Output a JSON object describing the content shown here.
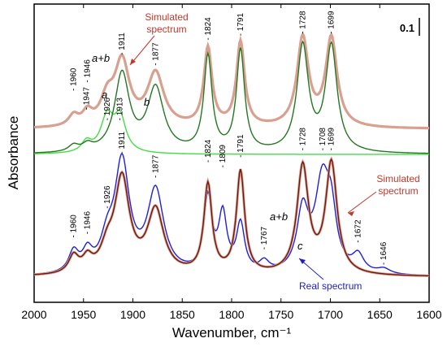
{
  "chart_data": {
    "type": "line",
    "title": "",
    "xlabel": "Wavenumber, cm⁻¹",
    "ylabel": "Absorbance",
    "xlim": [
      2000,
      1600
    ],
    "x_reversed": true,
    "xticks": [
      "2000",
      "1950",
      "1900",
      "1850",
      "1800",
      "1750",
      "1700",
      "1650",
      "1600"
    ],
    "y_ticks_shown": false,
    "scale_bar_label": "0.1",
    "upper_panel": {
      "series": [
        {
          "name": "a+b",
          "color": "#6b1a10",
          "baseline": 0.12,
          "peaks": [
            [
              1960,
              0.05,
              6
            ],
            [
              1946,
              0.06,
              6
            ],
            [
              1926,
              0.12,
              8
            ],
            [
              1911,
              0.3,
              9
            ],
            [
              1877,
              0.25,
              10
            ],
            [
              1824,
              0.37,
              5
            ],
            [
              1791,
              0.4,
              5
            ],
            [
              1728,
              0.42,
              7
            ],
            [
              1699,
              0.42,
              7
            ]
          ]
        },
        {
          "name": "Simulated spectrum",
          "color": "#d9a090",
          "baseline": 0.12,
          "peaks": [
            [
              1960,
              0.05,
              6
            ],
            [
              1946,
              0.06,
              6
            ],
            [
              1926,
              0.12,
              8
            ],
            [
              1911,
              0.3,
              9
            ],
            [
              1877,
              0.25,
              10
            ],
            [
              1824,
              0.37,
              5
            ],
            [
              1791,
              0.4,
              5
            ],
            [
              1728,
              0.42,
              7
            ],
            [
              1699,
              0.42,
              7
            ]
          ]
        },
        {
          "name": "a",
          "color": "#44dd44",
          "baseline": 0.0,
          "peaks": [
            [
              1947,
              0.05,
              6
            ],
            [
              1926,
              0.17,
              8
            ],
            [
              1913,
              0.16,
              7
            ]
          ]
        },
        {
          "name": "b",
          "color": "#227722",
          "baseline": 0.0,
          "peaks": [
            [
              1960,
              0.03,
              6
            ],
            [
              1946,
              0.03,
              6
            ],
            [
              1911,
              0.37,
              9
            ],
            [
              1877,
              0.3,
              10
            ],
            [
              1824,
              0.45,
              5
            ],
            [
              1791,
              0.48,
              5
            ],
            [
              1728,
              0.5,
              7
            ],
            [
              1699,
              0.5,
              7
            ]
          ]
        }
      ]
    },
    "lower_panel": {
      "series": [
        {
          "name": "Real spectrum",
          "color": "#1f1fdd",
          "baseline": 0.02,
          "peaks": [
            [
              1960,
              0.12,
              6
            ],
            [
              1946,
              0.11,
              6
            ],
            [
              1926,
              0.16,
              8
            ],
            [
              1911,
              0.64,
              9
            ],
            [
              1877,
              0.48,
              10
            ],
            [
              1824,
              0.43,
              5
            ],
            [
              1809,
              0.33,
              5
            ],
            [
              1791,
              0.28,
              5
            ],
            [
              1767,
              0.06,
              6
            ],
            [
              1728,
              0.35,
              7
            ],
            [
              1708,
              0.53,
              9
            ],
            [
              1699,
              0.26,
              6
            ],
            [
              1672,
              0.1,
              7
            ],
            [
              1646,
              0.03,
              8
            ]
          ]
        },
        {
          "name": "Simulated spectrum",
          "color": "#d9a090",
          "baseline": 0.02,
          "peaks": [
            [
              1960,
              0.1,
              6
            ],
            [
              1946,
              0.08,
              6
            ],
            [
              1926,
              0.12,
              8
            ],
            [
              1911,
              0.55,
              9
            ],
            [
              1877,
              0.37,
              10
            ],
            [
              1824,
              0.52,
              5
            ],
            [
              1791,
              0.6,
              5
            ],
            [
              1728,
              0.63,
              7
            ],
            [
              1699,
              0.65,
              7
            ]
          ]
        },
        {
          "name": "a+b",
          "color": "#6b1a10",
          "baseline": 0.02,
          "peaks": [
            [
              1960,
              0.1,
              6
            ],
            [
              1946,
              0.08,
              6
            ],
            [
              1926,
              0.12,
              8
            ],
            [
              1911,
              0.55,
              9
            ],
            [
              1877,
              0.37,
              10
            ],
            [
              1824,
              0.52,
              5
            ],
            [
              1791,
              0.6,
              5
            ],
            [
              1728,
              0.63,
              7
            ],
            [
              1699,
              0.65,
              7
            ]
          ]
        }
      ]
    },
    "upper_peak_labels": [
      {
        "text": "1911",
        "x": 1911,
        "y": 0.47
      },
      {
        "text": "1877",
        "x": 1877,
        "y": 0.42
      },
      {
        "text": "1824",
        "x": 1824,
        "y": 0.54
      },
      {
        "text": "1791",
        "x": 1791,
        "y": 0.56
      },
      {
        "text": "1728",
        "x": 1728,
        "y": 0.57
      },
      {
        "text": "1699",
        "x": 1699,
        "y": 0.57
      },
      {
        "text": "1960",
        "x": 1960,
        "y": 0.3
      },
      {
        "text": "1946",
        "x": 1946,
        "y": 0.34
      },
      {
        "text": "1947",
        "x": 1947,
        "y": 0.21
      },
      {
        "text": "1926",
        "x": 1926,
        "y": 0.16
      },
      {
        "text": "1913",
        "x": 1913,
        "y": 0.16
      }
    ],
    "lower_peak_labels": [
      {
        "text": "1911",
        "x": 1911,
        "y": 0.74
      },
      {
        "text": "1877",
        "x": 1877,
        "y": 0.6
      },
      {
        "text": "1824",
        "x": 1824,
        "y": 0.69
      },
      {
        "text": "1809",
        "x": 1809,
        "y": 0.66
      },
      {
        "text": "1791",
        "x": 1791,
        "y": 0.72
      },
      {
        "text": "1767",
        "x": 1767,
        "y": 0.18
      },
      {
        "text": "1728",
        "x": 1728,
        "y": 0.76
      },
      {
        "text": "1708",
        "x": 1708,
        "y": 0.76
      },
      {
        "text": "1699",
        "x": 1699,
        "y": 0.76
      },
      {
        "text": "1672",
        "x": 1672,
        "y": 0.22
      },
      {
        "text": "1646",
        "x": 1646,
        "y": 0.09
      },
      {
        "text": "1960",
        "x": 1960,
        "y": 0.25
      },
      {
        "text": "1946",
        "x": 1946,
        "y": 0.27
      },
      {
        "text": "1926",
        "x": 1926,
        "y": 0.42
      }
    ],
    "annotations": [
      {
        "text": "Simulated spectrum",
        "color": "#c0392b"
      },
      {
        "text": "a+b",
        "style": "italic"
      },
      {
        "text": "a",
        "style": "italic"
      },
      {
        "text": "b",
        "style": "italic"
      },
      {
        "text": "Simulated spectrum",
        "color": "#c0392b"
      },
      {
        "text": "a+b",
        "style": "italic"
      },
      {
        "text": "c",
        "style": "italic"
      },
      {
        "text": "Real spectrum",
        "color": "#1f1fbf"
      }
    ]
  }
}
